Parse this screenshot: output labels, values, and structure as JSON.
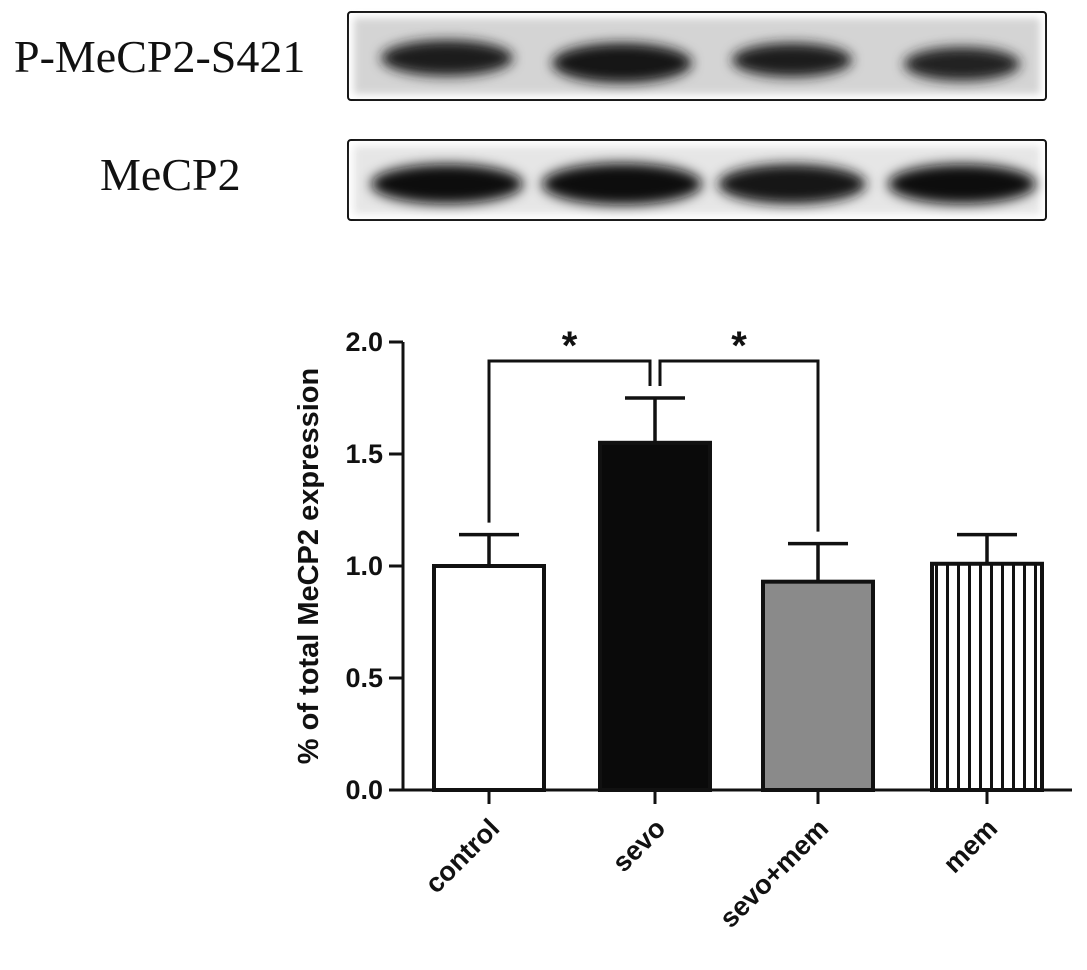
{
  "blot": {
    "rows": [
      {
        "label": "P-MeCP2-S421",
        "lanes": 4
      },
      {
        "label": "MeCP2",
        "lanes": 4
      }
    ]
  },
  "chart_data": {
    "type": "bar",
    "categories": [
      "control",
      "sevo",
      "sevo+mem",
      "mem"
    ],
    "values": [
      1.0,
      1.55,
      0.93,
      1.01
    ],
    "errors": [
      0.14,
      0.2,
      0.17,
      0.13
    ],
    "bar_fills": [
      "white",
      "black",
      "gray",
      "vertical-stripes"
    ],
    "ylabel": "% of total MeCP2 expression",
    "xlabel": "",
    "title": "",
    "ylim": [
      0,
      2.0
    ],
    "yticks": [
      "0.0",
      "0.5",
      "1.0",
      "1.5",
      "2.0"
    ],
    "significance": [
      {
        "from": "control",
        "to": "sevo",
        "label": "*"
      },
      {
        "from": "sevo",
        "to": "sevo+mem",
        "label": "*"
      }
    ],
    "grid": false,
    "legend": "none"
  },
  "colors": {
    "ink": "#111111",
    "gray_bar": "#8a8a8a",
    "blot_band": "#1a1a1a",
    "blot_bg": "#d9d9d9"
  }
}
